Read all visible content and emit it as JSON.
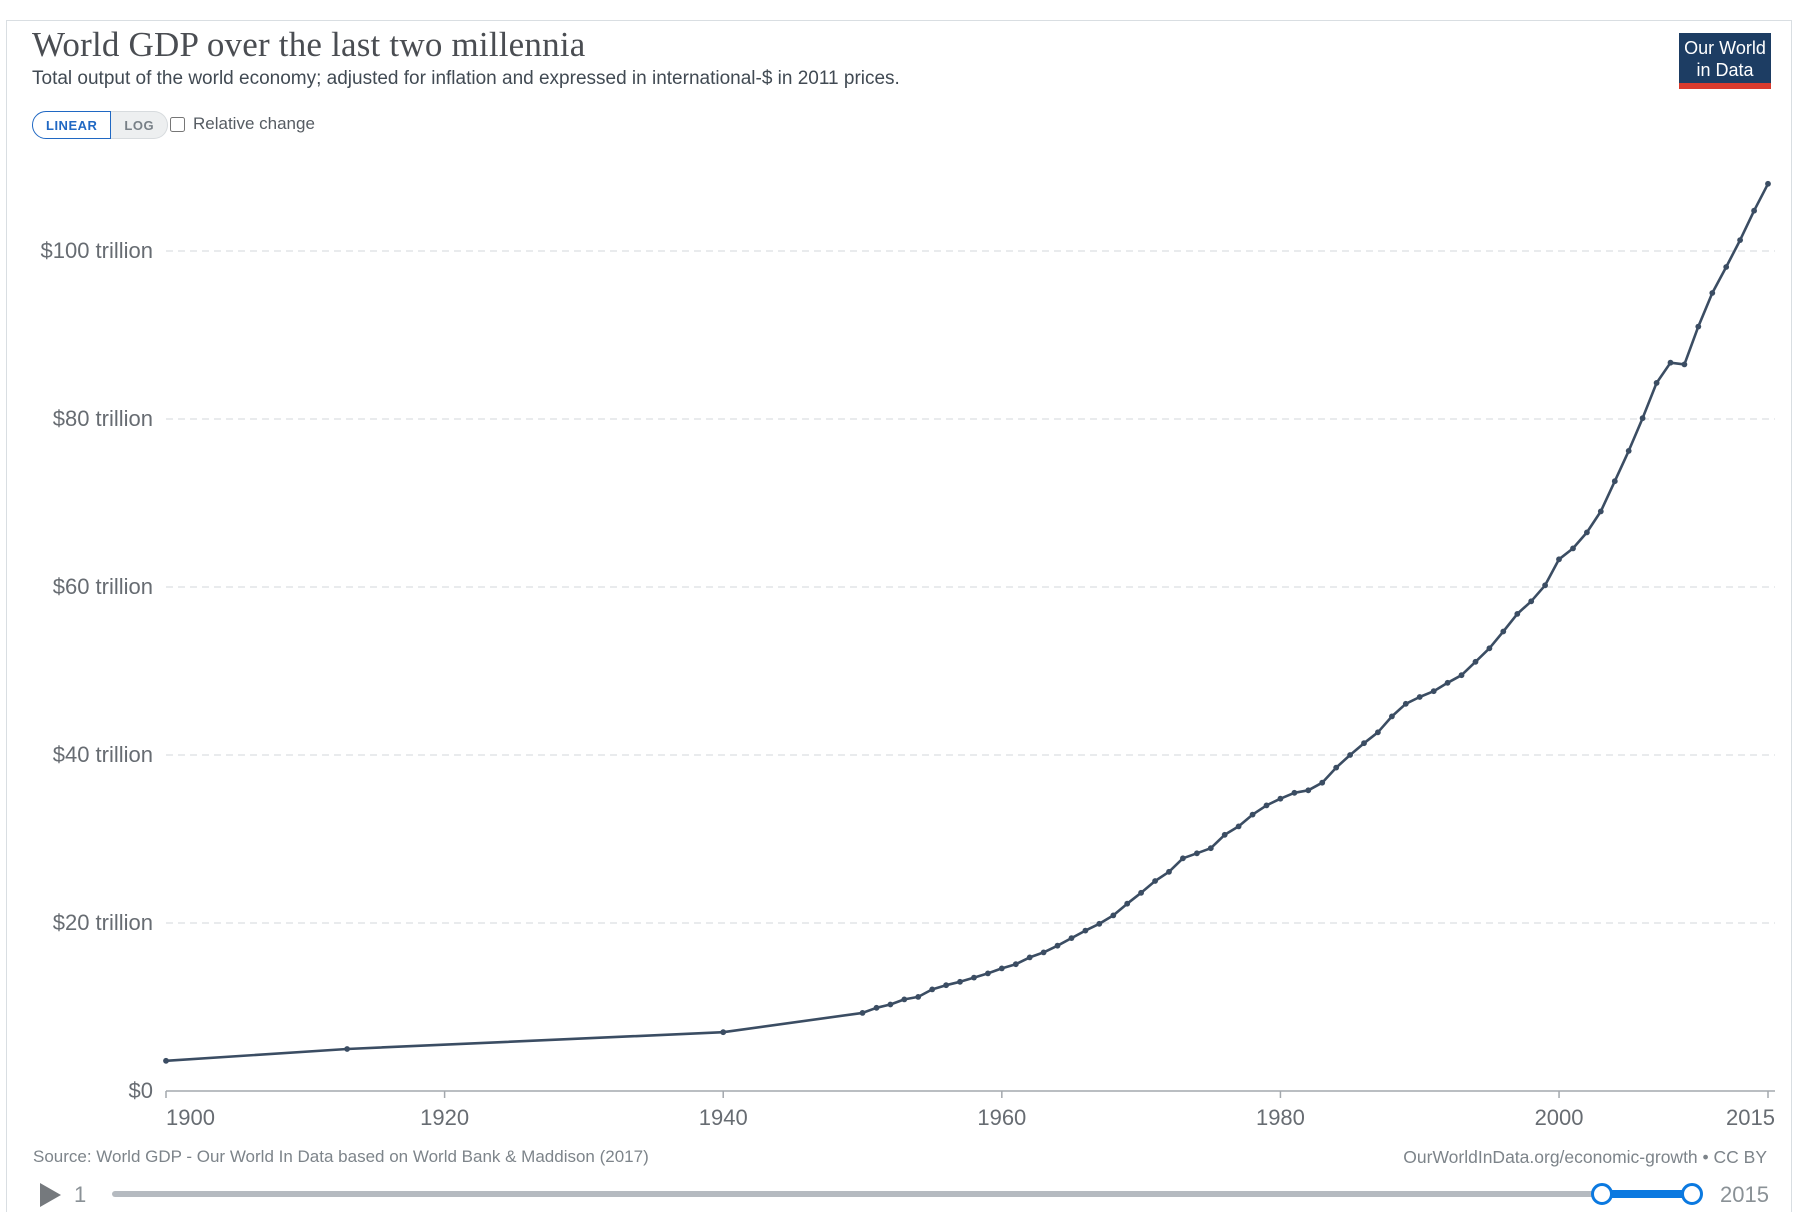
{
  "header": {
    "title": "World GDP over the last two millennia",
    "subtitle": "Total output of the world economy; adjusted for inflation and expressed in international-$ in 2011 prices.",
    "logo": {
      "line1": "Our World",
      "line2": "in Data",
      "bg_color": "#1d3d63",
      "accent_color": "#d93a2d"
    }
  },
  "controls": {
    "scale_toggle": {
      "options": [
        "LINEAR",
        "LOG"
      ],
      "selected": "LINEAR"
    },
    "relative_change": {
      "label": "Relative change",
      "checked": false
    }
  },
  "chart_data": {
    "type": "line",
    "title": "World GDP over the last two millennia",
    "series_name": "World GDP",
    "unit": "trillion international-$ in 2011 prices",
    "line_color": "#3b4d63",
    "grid": "horizontal dashed",
    "legend": "none",
    "xlim": [
      1900,
      2015
    ],
    "ylim": [
      0,
      110
    ],
    "x_ticks": [
      1900,
      1920,
      1940,
      1960,
      1980,
      2000,
      2015
    ],
    "y_ticks": [
      {
        "value": 0,
        "label": "$0"
      },
      {
        "value": 20,
        "label": "$20 trillion"
      },
      {
        "value": 40,
        "label": "$40 trillion"
      },
      {
        "value": 60,
        "label": "$60 trillion"
      },
      {
        "value": 80,
        "label": "$80 trillion"
      },
      {
        "value": 100,
        "label": "$100 trillion"
      }
    ],
    "x": [
      1900,
      1913,
      1940,
      1950,
      1951,
      1952,
      1953,
      1954,
      1955,
      1956,
      1957,
      1958,
      1959,
      1960,
      1961,
      1962,
      1963,
      1964,
      1965,
      1966,
      1967,
      1968,
      1969,
      1970,
      1971,
      1972,
      1973,
      1974,
      1975,
      1976,
      1977,
      1978,
      1979,
      1980,
      1981,
      1982,
      1983,
      1984,
      1985,
      1986,
      1987,
      1988,
      1989,
      1990,
      1991,
      1992,
      1993,
      1994,
      1995,
      1996,
      1997,
      1998,
      1999,
      2000,
      2001,
      2002,
      2003,
      2004,
      2005,
      2006,
      2007,
      2008,
      2009,
      2010,
      2011,
      2012,
      2013,
      2014,
      2015
    ],
    "values": [
      3.6,
      5.0,
      7.0,
      9.3,
      9.9,
      10.3,
      10.9,
      11.2,
      12.1,
      12.6,
      13.0,
      13.5,
      14.0,
      14.6,
      15.1,
      15.9,
      16.5,
      17.3,
      18.2,
      19.1,
      19.9,
      20.9,
      22.3,
      23.6,
      25.0,
      26.1,
      27.7,
      28.3,
      28.9,
      30.5,
      31.5,
      32.9,
      34.0,
      34.8,
      35.5,
      35.8,
      36.7,
      38.5,
      40.0,
      41.4,
      42.7,
      44.6,
      46.1,
      46.9,
      47.6,
      48.6,
      49.5,
      51.1,
      52.7,
      54.7,
      56.8,
      58.3,
      60.2,
      63.3,
      64.6,
      66.5,
      69.0,
      72.6,
      76.2,
      80.1,
      84.3,
      86.7,
      86.5,
      91.0,
      95.0,
      98.1,
      101.3,
      104.8,
      108.0
    ]
  },
  "footer": {
    "source": "Source: World GDP - Our World In Data based on World Bank & Maddison (2017)",
    "attribution": "OurWorldInData.org/economic-growth • CC BY"
  },
  "timeline": {
    "start_label": "1",
    "end_label": "2015",
    "handle_label": "2015"
  }
}
